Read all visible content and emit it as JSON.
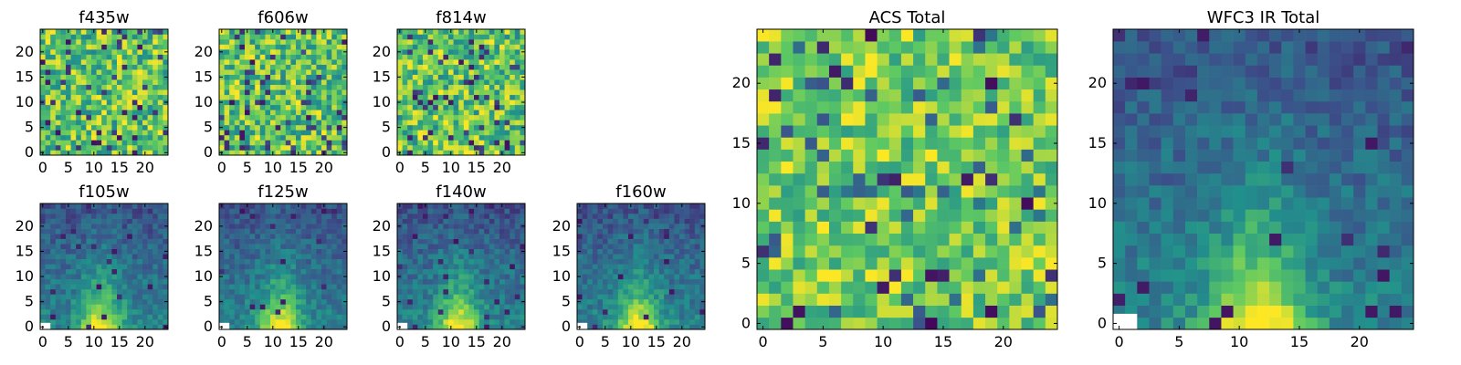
{
  "chart_data": [
    {
      "type": "heatmap",
      "title": "f435w",
      "grid_size": 25,
      "pattern": "noise",
      "seed": 11,
      "xticks": [
        "0",
        "5",
        "10",
        "15",
        "20"
      ],
      "yticks": [
        "0",
        "5",
        "10",
        "15",
        "20"
      ],
      "xlim": [
        0,
        25
      ],
      "ylim": [
        0,
        25
      ],
      "grid": false
    },
    {
      "type": "heatmap",
      "title": "f606w",
      "grid_size": 25,
      "pattern": "noise",
      "seed": 23,
      "xticks": [
        "0",
        "5",
        "10",
        "15",
        "20"
      ],
      "yticks": [
        "0",
        "5",
        "10",
        "15",
        "20"
      ],
      "xlim": [
        0,
        25
      ],
      "ylim": [
        0,
        25
      ],
      "grid": false
    },
    {
      "type": "heatmap",
      "title": "f814w",
      "grid_size": 25,
      "pattern": "noise",
      "seed": 37,
      "xticks": [
        "0",
        "5",
        "10",
        "15",
        "20"
      ],
      "yticks": [
        "0",
        "5",
        "10",
        "15",
        "20"
      ],
      "xlim": [
        0,
        25
      ],
      "ylim": [
        0,
        25
      ],
      "grid": false
    },
    {
      "type": "heatmap",
      "title": "f105w",
      "grid_size": 25,
      "pattern": "ir",
      "seed": 41,
      "xticks": [
        "0",
        "5",
        "10",
        "15",
        "20"
      ],
      "yticks": [
        "0",
        "5",
        "10",
        "15",
        "20"
      ],
      "xlim": [
        0,
        25
      ],
      "ylim": [
        0,
        25
      ],
      "grid": false
    },
    {
      "type": "heatmap",
      "title": "f125w",
      "grid_size": 25,
      "pattern": "ir",
      "seed": 53,
      "xticks": [
        "0",
        "5",
        "10",
        "15",
        "20"
      ],
      "yticks": [
        "0",
        "5",
        "10",
        "15",
        "20"
      ],
      "xlim": [
        0,
        25
      ],
      "ylim": [
        0,
        25
      ],
      "grid": false
    },
    {
      "type": "heatmap",
      "title": "f140w",
      "grid_size": 25,
      "pattern": "ir",
      "seed": 67,
      "xticks": [
        "0",
        "5",
        "10",
        "15",
        "20"
      ],
      "yticks": [
        "0",
        "5",
        "10",
        "15",
        "20"
      ],
      "xlim": [
        0,
        25
      ],
      "ylim": [
        0,
        25
      ],
      "grid": false
    },
    {
      "type": "heatmap",
      "title": "f160w",
      "grid_size": 25,
      "pattern": "ir",
      "seed": 79,
      "xticks": [
        "0",
        "5",
        "10",
        "15",
        "20"
      ],
      "yticks": [
        "0",
        "5",
        "10",
        "15",
        "20"
      ],
      "xlim": [
        0,
        25
      ],
      "ylim": [
        0,
        25
      ],
      "grid": false
    },
    {
      "type": "heatmap",
      "title": "ACS Total",
      "grid_size": 25,
      "pattern": "acs",
      "seed": 97,
      "xticks": [
        "0",
        "5",
        "10",
        "15",
        "20"
      ],
      "yticks": [
        "0",
        "5",
        "10",
        "15",
        "20"
      ],
      "xlim": [
        0,
        25
      ],
      "ylim": [
        0,
        25
      ],
      "grid": false
    },
    {
      "type": "heatmap",
      "title": "WFC3 IR Total",
      "grid_size": 25,
      "pattern": "ir",
      "seed": 113,
      "xticks": [
        "0",
        "5",
        "10",
        "15",
        "20"
      ],
      "yticks": [
        "0",
        "5",
        "10",
        "15",
        "20"
      ],
      "xlim": [
        0,
        25
      ],
      "ylim": [
        0,
        25
      ],
      "grid": false
    }
  ],
  "colormap": [
    "#440154",
    "#3b528b",
    "#21918c",
    "#5ec962",
    "#fde725"
  ]
}
